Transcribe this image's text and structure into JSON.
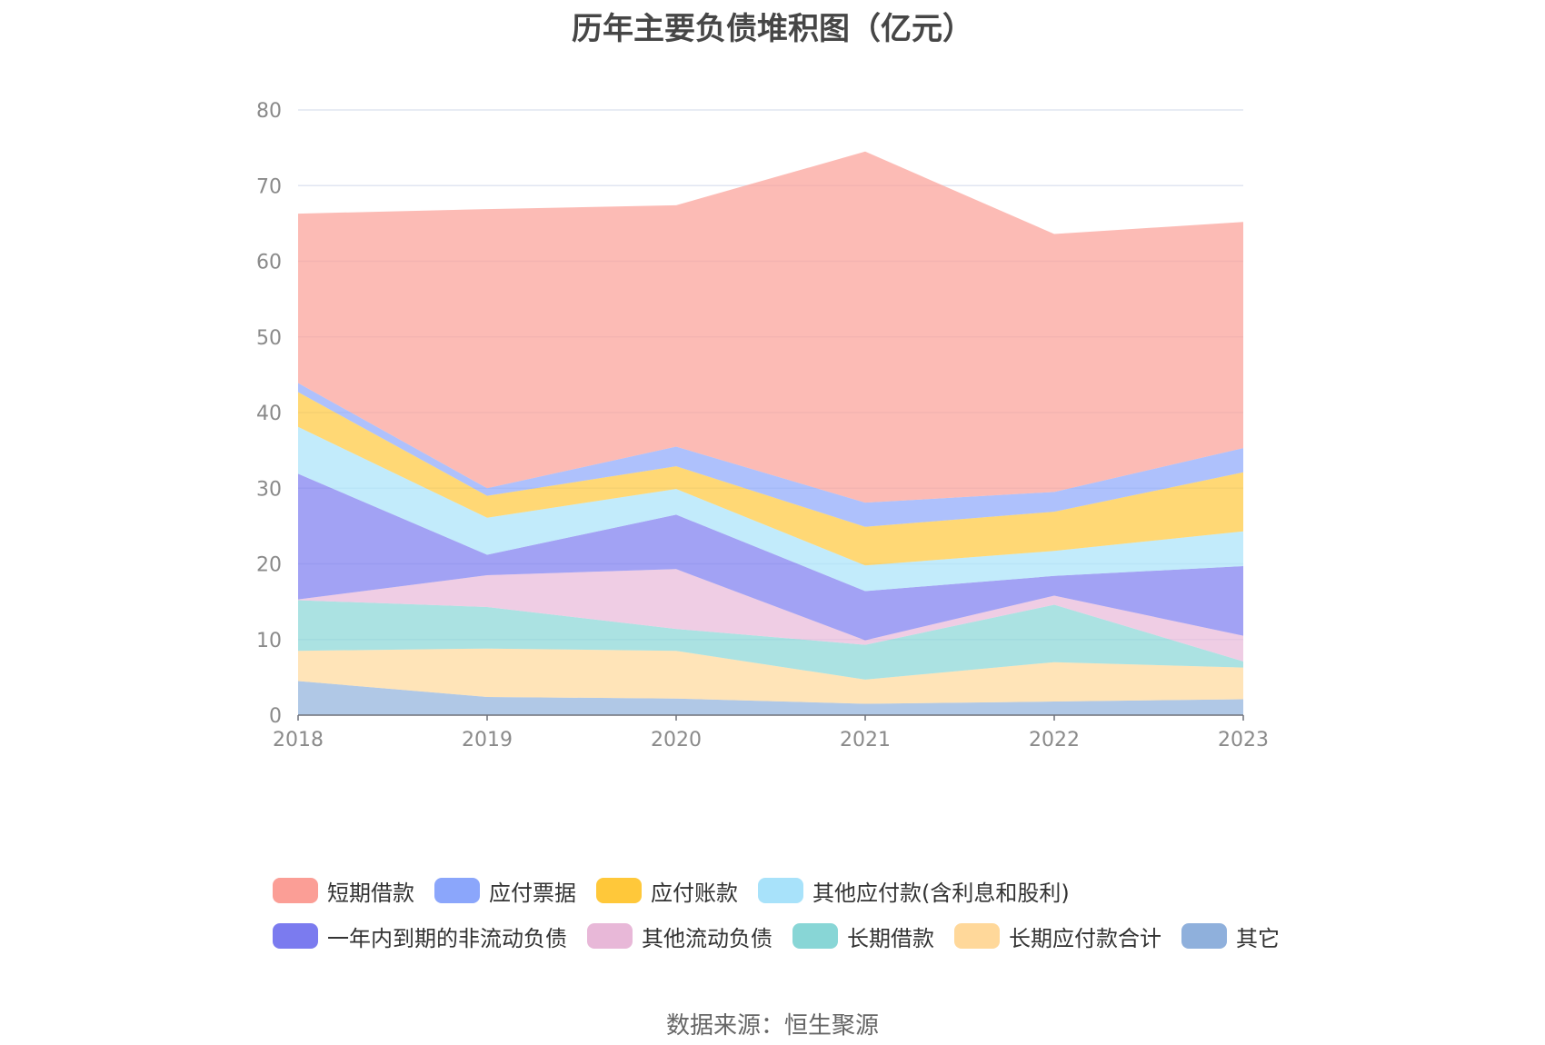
{
  "title": "历年主要负债堆积图（亿元）",
  "source": "数据来源：恒生聚源",
  "chart_data": {
    "type": "area",
    "stacked": true,
    "title": "历年主要负债堆积图（亿元）",
    "x": [
      "2018",
      "2019",
      "2020",
      "2021",
      "2022",
      "2023"
    ],
    "ylim": [
      0,
      80
    ],
    "yticks": [
      "0",
      "10",
      "20",
      "30",
      "40",
      "50",
      "60",
      "70",
      "80"
    ],
    "grid": true,
    "legend_position": "bottom",
    "series": [
      {
        "name": "其它",
        "color": "#8fb0dc",
        "values": [
          4.5,
          2.4,
          2.2,
          1.5,
          1.8,
          2.1
        ]
      },
      {
        "name": "长期应付款合计",
        "color": "#ffd89a",
        "values": [
          4.0,
          6.4,
          6.3,
          3.2,
          5.2,
          4.2
        ]
      },
      {
        "name": "长期借款",
        "color": "#88d6d6",
        "values": [
          6.7,
          5.5,
          2.9,
          4.6,
          7.6,
          0.8
        ]
      },
      {
        "name": "其他流动负债",
        "color": "#e8b8d8",
        "values": [
          0.1,
          4.2,
          7.9,
          0.6,
          1.2,
          3.4
        ]
      },
      {
        "name": "一年内到期的非流动负债",
        "color": "#7b7bef",
        "values": [
          16.6,
          2.7,
          7.2,
          6.5,
          2.6,
          9.2
        ]
      },
      {
        "name": "其他应付款(含利息和股利)",
        "color": "#a8e2fa",
        "values": [
          6.2,
          4.9,
          3.4,
          3.4,
          3.3,
          4.6
        ]
      },
      {
        "name": "应付账款",
        "color": "#ffc83a",
        "values": [
          4.6,
          2.9,
          3.0,
          5.1,
          5.2,
          7.8
        ]
      },
      {
        "name": "应付票据",
        "color": "#8ba6fb",
        "values": [
          1.2,
          1.0,
          2.6,
          3.2,
          2.6,
          3.2
        ]
      },
      {
        "name": "短期借款",
        "color": "#fb9e96",
        "values": [
          22.4,
          36.9,
          31.9,
          46.4,
          34.1,
          29.9
        ]
      }
    ]
  },
  "legend": {
    "rows": [
      [
        {
          "label": "短期借款",
          "color": "#fb9e96"
        },
        {
          "label": "应付票据",
          "color": "#8ba6fb"
        },
        {
          "label": "应付账款",
          "color": "#ffc83a"
        },
        {
          "label": "其他应付款(含利息和股利)",
          "color": "#a8e2fa"
        }
      ],
      [
        {
          "label": "一年内到期的非流动负债",
          "color": "#7b7bef"
        },
        {
          "label": "其他流动负债",
          "color": "#e8b8d8"
        },
        {
          "label": "长期借款",
          "color": "#88d6d6"
        },
        {
          "label": "长期应付款合计",
          "color": "#ffd89a"
        },
        {
          "label": "其它",
          "color": "#8fb0dc"
        }
      ]
    ]
  }
}
